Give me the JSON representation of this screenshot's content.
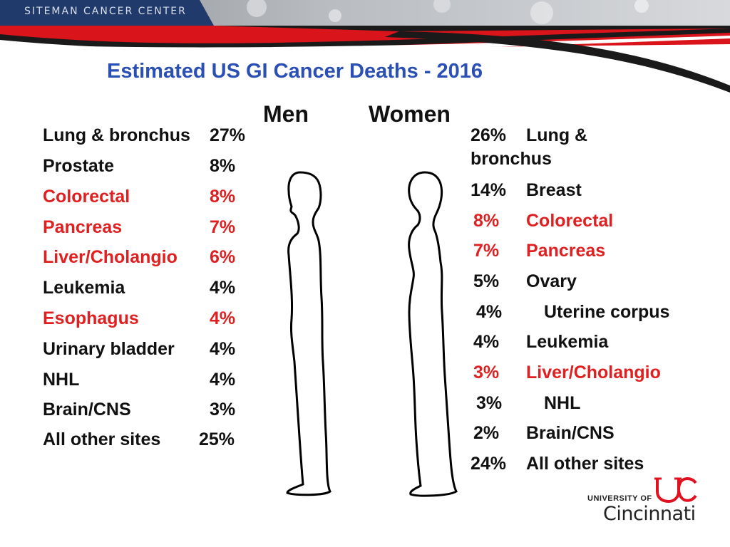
{
  "header": {
    "brand": "SITEMAN CANCER CENTER"
  },
  "title": "Estimated US GI Cancer Deaths - 2016",
  "columns": {
    "men": "Men",
    "women": "Women"
  },
  "men": [
    {
      "site": "Lung & bronchus",
      "pct": "27%",
      "highlight": false
    },
    {
      "site": "Prostate",
      "pct": "8%",
      "highlight": false
    },
    {
      "site": "Colorectal",
      "pct": "8%",
      "highlight": true
    },
    {
      "site": "Pancreas",
      "pct": "7%",
      "highlight": true
    },
    {
      "site": "Liver/Cholangio",
      "pct": "6%",
      "highlight": true
    },
    {
      "site": "Leukemia",
      "pct": "4%",
      "highlight": false
    },
    {
      "site": "Esophagus",
      "pct": "4%",
      "highlight": true
    },
    {
      "site": "Urinary bladder",
      "pct": "4%",
      "highlight": false
    },
    {
      "site": "NHL",
      "pct": "4%",
      "highlight": false
    },
    {
      "site": "Brain/CNS",
      "pct": "3%",
      "highlight": false
    },
    {
      "site": "All other sites",
      "pct": "25%",
      "highlight": false
    }
  ],
  "women": [
    {
      "pct": "26%",
      "site": "Lung &",
      "site2": "bronchus",
      "highlight": false
    },
    {
      "pct": "14%",
      "site": "Breast",
      "highlight": false
    },
    {
      "pct": "8%",
      "site": "Colorectal",
      "highlight": true
    },
    {
      "pct": "7%",
      "site": "Pancreas",
      "highlight": true
    },
    {
      "pct": "5%",
      "site": "Ovary",
      "highlight": false
    },
    {
      "pct": "4%",
      "site": "Uterine corpus",
      "highlight": false
    },
    {
      "pct": "4%",
      "site": "Leukemia",
      "highlight": false
    },
    {
      "pct": "3%",
      "site": "Liver/Cholangio",
      "highlight": true
    },
    {
      "pct": "3%",
      "site": "NHL",
      "highlight": false
    },
    {
      "pct": "2%",
      "site": "Brain/CNS",
      "highlight": false
    },
    {
      "pct": "24%",
      "site": "All other sites",
      "highlight": false
    }
  ],
  "logo": {
    "line1": "UNIVERSITY OF",
    "line2": "Cincinnati"
  },
  "colors": {
    "title": "#2a4fb5",
    "highlight": "#e02020",
    "banner_red": "#d9141b"
  }
}
